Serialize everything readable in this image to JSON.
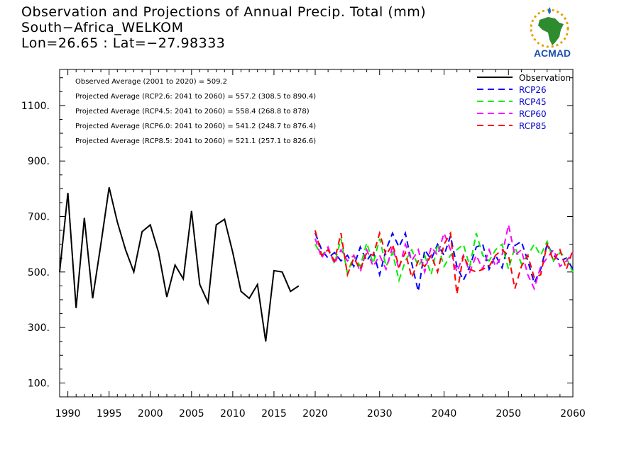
{
  "header": {
    "title_line1": "Observation and Projections of Annual Precip. Total (mm)",
    "title_line2": "South−Africa_WELKOM",
    "title_line3": "Lon=26.65 : Lat=−27.98333"
  },
  "logo": {
    "text": "ACMAD",
    "icon": "africa-map-sun-logo"
  },
  "chart_data": {
    "type": "line",
    "xlim": [
      1989,
      2060
    ],
    "ylim": [
      50,
      1230
    ],
    "x_ticks": [
      1990,
      1995,
      2000,
      2005,
      2010,
      2015,
      2020,
      2030,
      2040,
      2050,
      2060
    ],
    "y_ticks": [
      100,
      300,
      500,
      700,
      900,
      1100
    ],
    "y_tick_labels": [
      "100.",
      "300.",
      "500.",
      "700.",
      "900.",
      "1100."
    ],
    "annotations": [
      "Observed Average (2001 to 2020) = 509.2",
      "Projected Average (RCP2.6: 2041 to 2060) = 557.2 (308.5 to 890.4)",
      "Projected Average (RCP4.5: 2041 to 2060) = 558.4 (268.8 to 878)",
      "Projected Average (RCP6.0: 2041 to 2060) = 541.2 (248.7 to 876.4)",
      "Projected Average (RCP8.5: 2041 to 2060) = 521.1 (257.1 to 826.6)"
    ],
    "series": [
      {
        "name": "Observation",
        "color": "#000000",
        "dashed": false,
        "x": [
          1989,
          1990,
          1991,
          1992,
          1993,
          1994,
          1995,
          1996,
          1997,
          1998,
          1999,
          2000,
          2001,
          2002,
          2003,
          2004,
          2005,
          2006,
          2007,
          2008,
          2009,
          2010,
          2011,
          2012,
          2013,
          2014,
          2015,
          2016,
          2017,
          2018,
          2019
        ],
        "values": [
          500,
          785,
          370,
          695,
          405,
          600,
          805,
          680,
          580,
          500,
          645,
          670,
          570,
          410,
          525,
          475,
          720,
          455,
          390,
          670,
          690,
          570,
          430,
          405,
          455,
          250,
          505,
          500,
          430,
          450,
          null
        ]
      },
      {
        "name": "RCP26",
        "color": "#0000ff",
        "dashed": true,
        "x": [
          2020,
          2021,
          2022,
          2023,
          2024,
          2025,
          2026,
          2027,
          2028,
          2029,
          2030,
          2031,
          2032,
          2033,
          2034,
          2035,
          2036,
          2037,
          2038,
          2039,
          2040,
          2041,
          2042,
          2043,
          2044,
          2045,
          2046,
          2047,
          2048,
          2049,
          2050,
          2051,
          2052,
          2053,
          2054,
          2055,
          2056,
          2057,
          2058,
          2059,
          2060
        ],
        "values": [
          640,
          580,
          550,
          570,
          540,
          560,
          520,
          590,
          540,
          575,
          490,
          580,
          640,
          590,
          640,
          530,
          430,
          580,
          545,
          600,
          560,
          630,
          520,
          470,
          520,
          590,
          600,
          510,
          560,
          515,
          600,
          595,
          610,
          540,
          460,
          510,
          600,
          560,
          540,
          550,
          510
        ]
      },
      {
        "name": "RCP45",
        "color": "#00ee00",
        "dashed": true,
        "x": [
          2020,
          2021,
          2022,
          2023,
          2024,
          2025,
          2026,
          2027,
          2028,
          2029,
          2030,
          2031,
          2032,
          2033,
          2034,
          2035,
          2036,
          2037,
          2038,
          2039,
          2040,
          2041,
          2042,
          2043,
          2044,
          2045,
          2046,
          2047,
          2048,
          2049,
          2050,
          2051,
          2052,
          2053,
          2054,
          2055,
          2056,
          2057,
          2058,
          2059,
          2060
        ],
        "values": [
          600,
          560,
          585,
          530,
          620,
          495,
          560,
          520,
          605,
          530,
          620,
          520,
          570,
          470,
          540,
          580,
          520,
          560,
          490,
          600,
          520,
          560,
          580,
          600,
          520,
          640,
          560,
          540,
          580,
          600,
          510,
          590,
          530,
          560,
          600,
          560,
          610,
          540,
          570,
          550,
          500
        ]
      },
      {
        "name": "RCP60",
        "color": "#ff00ff",
        "dashed": true,
        "x": [
          2020,
          2021,
          2022,
          2023,
          2024,
          2025,
          2026,
          2027,
          2028,
          2029,
          2030,
          2031,
          2032,
          2033,
          2034,
          2035,
          2036,
          2037,
          2038,
          2039,
          2040,
          2041,
          2042,
          2043,
          2044,
          2045,
          2046,
          2047,
          2048,
          2049,
          2050,
          2051,
          2052,
          2053,
          2054,
          2055,
          2056,
          2057,
          2058,
          2059,
          2060
        ],
        "values": [
          620,
          550,
          590,
          530,
          580,
          540,
          560,
          500,
          580,
          520,
          560,
          510,
          590,
          510,
          600,
          540,
          580,
          500,
          590,
          560,
          640,
          580,
          500,
          560,
          500,
          560,
          510,
          580,
          520,
          560,
          670,
          560,
          580,
          490,
          440,
          520,
          550,
          580,
          520,
          540,
          570
        ]
      },
      {
        "name": "RCP85",
        "color": "#ff0000",
        "dashed": true,
        "x": [
          2020,
          2021,
          2022,
          2023,
          2024,
          2025,
          2026,
          2027,
          2028,
          2029,
          2030,
          2031,
          2032,
          2033,
          2034,
          2035,
          2036,
          2037,
          2038,
          2039,
          2040,
          2041,
          2042,
          2043,
          2044,
          2045,
          2046,
          2047,
          2048,
          2049,
          2050,
          2051,
          2052,
          2053,
          2054,
          2055,
          2056,
          2057,
          2058,
          2059,
          2060
        ],
        "values": [
          650,
          560,
          580,
          540,
          640,
          490,
          550,
          510,
          570,
          560,
          640,
          560,
          600,
          520,
          570,
          480,
          540,
          520,
          560,
          500,
          600,
          640,
          420,
          560,
          510,
          500,
          510,
          520,
          560,
          580,
          560,
          440,
          520,
          560,
          480,
          490,
          600,
          540,
          580,
          510,
          580
        ]
      }
    ],
    "legend_position": "top-right"
  }
}
